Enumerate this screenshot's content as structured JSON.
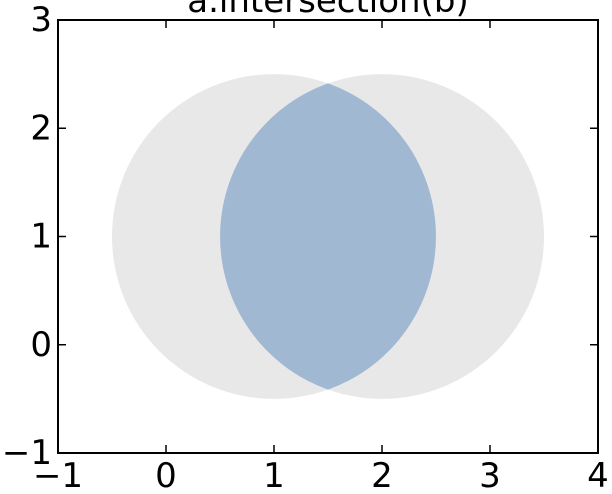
{
  "chart_data": {
    "type": "area",
    "title": "a.intersection(b)",
    "xlabel": "",
    "ylabel": "",
    "xlim": [
      -1,
      4
    ],
    "ylim": [
      -1,
      3
    ],
    "x_ticks": [
      -1,
      0,
      1,
      2,
      3,
      4
    ],
    "x_tick_labels": [
      "−1",
      "0",
      "1",
      "2",
      "3",
      "4"
    ],
    "y_ticks": [
      -1,
      0,
      1,
      2,
      3
    ],
    "y_tick_labels": [
      "−1",
      "0",
      "1",
      "2",
      "3"
    ],
    "grid": false,
    "shapes": [
      {
        "id": "a",
        "kind": "circle",
        "center": [
          1,
          1
        ],
        "radius": 1.5,
        "color": "#e8e8e8"
      },
      {
        "id": "b",
        "kind": "circle",
        "center": [
          2,
          1
        ],
        "radius": 1.5,
        "color": "#e8e8e8"
      }
    ],
    "intersection": {
      "of": [
        "a",
        "b"
      ],
      "vertices": [
        [
          1.5,
          2.414
        ],
        [
          1.5,
          -0.414
        ]
      ],
      "color": "#a1b8d3"
    }
  }
}
